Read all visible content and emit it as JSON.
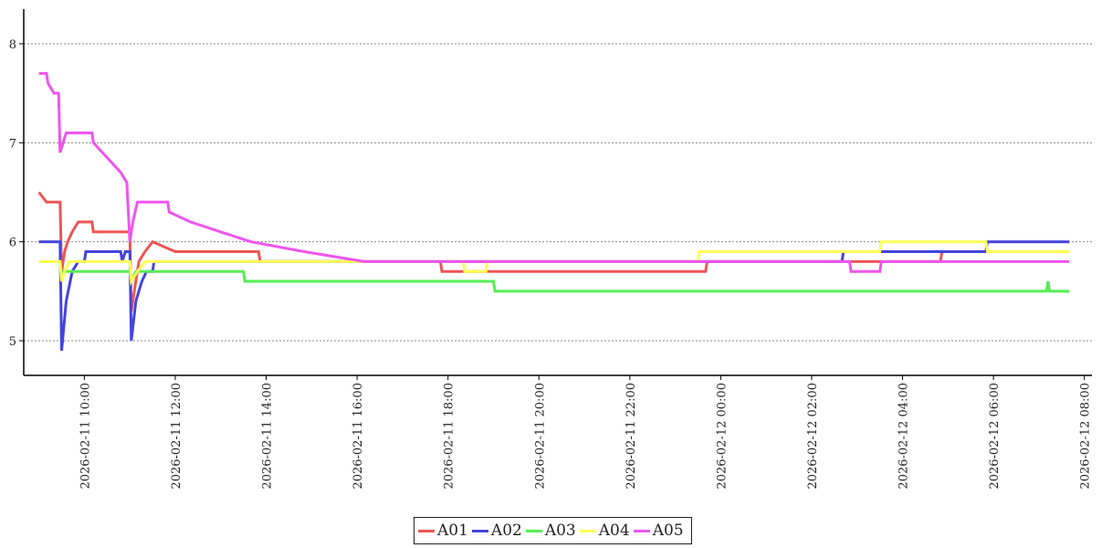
{
  "chart_data": {
    "type": "line",
    "title": "",
    "xlabel": "",
    "ylabel": "",
    "ylim": [
      4.65,
      8.35
    ],
    "xlim": [
      "2026-02-11 08:40",
      "2026-02-12 08:10"
    ],
    "y_ticks": [
      5,
      6,
      7,
      8
    ],
    "x_ticks": [
      "2026-02-11 10:00",
      "2026-02-11 12:00",
      "2026-02-11 14:00",
      "2026-02-11 16:00",
      "2026-02-11 18:00",
      "2026-02-11 20:00",
      "2026-02-11 22:00",
      "2026-02-12 00:00",
      "2026-02-12 02:00",
      "2026-02-12 04:00",
      "2026-02-12 06:00",
      "2026-02-12 08:00"
    ],
    "grid": "horizontal dotted",
    "legend_position": "bottom-center",
    "series": [
      {
        "name": "A01",
        "color": "#ee5555",
        "points": [
          [
            "2026-02-11 09:00",
            6.5
          ],
          [
            "2026-02-11 09:10",
            6.4
          ],
          [
            "2026-02-11 09:28",
            6.4
          ],
          [
            "2026-02-11 09:30",
            5.7
          ],
          [
            "2026-02-11 09:34",
            5.9
          ],
          [
            "2026-02-11 09:38",
            6.0
          ],
          [
            "2026-02-11 09:44",
            6.1
          ],
          [
            "2026-02-11 09:52",
            6.2
          ],
          [
            "2026-02-11 10:10",
            6.2
          ],
          [
            "2026-02-11 10:12",
            6.1
          ],
          [
            "2026-02-11 11:00",
            6.1
          ],
          [
            "2026-02-11 11:02",
            5.3
          ],
          [
            "2026-02-11 11:06",
            5.5
          ],
          [
            "2026-02-11 11:12",
            5.8
          ],
          [
            "2026-02-11 11:20",
            5.9
          ],
          [
            "2026-02-11 11:30",
            6.0
          ],
          [
            "2026-02-11 12:00",
            5.9
          ],
          [
            "2026-02-11 13:50",
            5.9
          ],
          [
            "2026-02-11 13:52",
            5.8
          ],
          [
            "2026-02-11 17:50",
            5.8
          ],
          [
            "2026-02-11 17:52",
            5.7
          ],
          [
            "2026-02-11 23:40",
            5.7
          ],
          [
            "2026-02-11 23:42",
            5.8
          ],
          [
            "2026-02-12 04:50",
            5.8
          ],
          [
            "2026-02-12 04:52",
            5.9
          ],
          [
            "2026-02-12 07:40",
            5.9
          ]
        ]
      },
      {
        "name": "A02",
        "color": "#4444dd",
        "points": [
          [
            "2026-02-11 09:00",
            6.0
          ],
          [
            "2026-02-11 09:28",
            6.0
          ],
          [
            "2026-02-11 09:30",
            4.9
          ],
          [
            "2026-02-11 09:36",
            5.4
          ],
          [
            "2026-02-11 09:44",
            5.7
          ],
          [
            "2026-02-11 09:52",
            5.8
          ],
          [
            "2026-02-11 10:00",
            5.8
          ],
          [
            "2026-02-11 10:02",
            5.9
          ],
          [
            "2026-02-11 10:48",
            5.9
          ],
          [
            "2026-02-11 10:50",
            5.8
          ],
          [
            "2026-02-11 10:54",
            5.9
          ],
          [
            "2026-02-11 11:00",
            5.9
          ],
          [
            "2026-02-11 11:02",
            5.0
          ],
          [
            "2026-02-11 11:08",
            5.4
          ],
          [
            "2026-02-11 11:16",
            5.6
          ],
          [
            "2026-02-11 11:22",
            5.7
          ],
          [
            "2026-02-11 11:30",
            5.7
          ],
          [
            "2026-02-11 11:32",
            5.8
          ],
          [
            "2026-02-12 02:40",
            5.8
          ],
          [
            "2026-02-12 02:42",
            5.9
          ],
          [
            "2026-02-12 05:50",
            5.9
          ],
          [
            "2026-02-12 05:52",
            6.0
          ],
          [
            "2026-02-12 07:40",
            6.0
          ]
        ]
      },
      {
        "name": "A03",
        "color": "#55ee55",
        "points": [
          [
            "2026-02-11 09:00",
            5.8
          ],
          [
            "2026-02-11 09:28",
            5.8
          ],
          [
            "2026-02-11 09:30",
            5.6
          ],
          [
            "2026-02-11 09:32",
            5.7
          ],
          [
            "2026-02-11 11:00",
            5.7
          ],
          [
            "2026-02-11 11:02",
            5.6
          ],
          [
            "2026-02-11 11:08",
            5.7
          ],
          [
            "2026-02-11 13:30",
            5.7
          ],
          [
            "2026-02-11 13:32",
            5.6
          ],
          [
            "2026-02-11 19:00",
            5.6
          ],
          [
            "2026-02-11 19:02",
            5.5
          ],
          [
            "2026-02-12 07:10",
            5.5
          ],
          [
            "2026-02-12 07:12",
            5.6
          ],
          [
            "2026-02-12 07:14",
            5.5
          ],
          [
            "2026-02-12 07:40",
            5.5
          ]
        ]
      },
      {
        "name": "A04",
        "color": "#ffff55",
        "points": [
          [
            "2026-02-11 09:00",
            5.8
          ],
          [
            "2026-02-11 09:28",
            5.8
          ],
          [
            "2026-02-11 09:30",
            5.6
          ],
          [
            "2026-02-11 09:34",
            5.7
          ],
          [
            "2026-02-11 09:40",
            5.8
          ],
          [
            "2026-02-11 11:00",
            5.8
          ],
          [
            "2026-02-11 11:02",
            5.6
          ],
          [
            "2026-02-11 11:10",
            5.7
          ],
          [
            "2026-02-11 11:20",
            5.8
          ],
          [
            "2026-02-11 18:20",
            5.8
          ],
          [
            "2026-02-11 18:22",
            5.7
          ],
          [
            "2026-02-11 18:50",
            5.7
          ],
          [
            "2026-02-11 18:52",
            5.8
          ],
          [
            "2026-02-11 23:30",
            5.8
          ],
          [
            "2026-02-11 23:32",
            5.9
          ],
          [
            "2026-02-12 03:30",
            5.9
          ],
          [
            "2026-02-12 03:32",
            6.0
          ],
          [
            "2026-02-12 05:50",
            6.0
          ],
          [
            "2026-02-12 05:52",
            5.9
          ],
          [
            "2026-02-12 07:40",
            5.9
          ]
        ]
      },
      {
        "name": "A05",
        "color": "#ee55ee",
        "points": [
          [
            "2026-02-11 09:00",
            7.7
          ],
          [
            "2026-02-11 09:10",
            7.7
          ],
          [
            "2026-02-11 09:12",
            7.6
          ],
          [
            "2026-02-11 09:20",
            7.5
          ],
          [
            "2026-02-11 09:26",
            7.5
          ],
          [
            "2026-02-11 09:28",
            6.9
          ],
          [
            "2026-02-11 09:32",
            7.0
          ],
          [
            "2026-02-11 09:36",
            7.1
          ],
          [
            "2026-02-11 10:10",
            7.1
          ],
          [
            "2026-02-11 10:12",
            7.0
          ],
          [
            "2026-02-11 10:24",
            6.9
          ],
          [
            "2026-02-11 10:36",
            6.8
          ],
          [
            "2026-02-11 10:48",
            6.7
          ],
          [
            "2026-02-11 10:56",
            6.6
          ],
          [
            "2026-02-11 11:00",
            6.0
          ],
          [
            "2026-02-11 11:04",
            6.2
          ],
          [
            "2026-02-11 11:10",
            6.4
          ],
          [
            "2026-02-11 11:50",
            6.4
          ],
          [
            "2026-02-11 11:52",
            6.3
          ],
          [
            "2026-02-11 12:20",
            6.2
          ],
          [
            "2026-02-11 13:00",
            6.1
          ],
          [
            "2026-02-11 13:40",
            6.0
          ],
          [
            "2026-02-11 14:50",
            5.9
          ],
          [
            "2026-02-11 16:10",
            5.8
          ],
          [
            "2026-02-12 02:50",
            5.8
          ],
          [
            "2026-02-12 02:52",
            5.7
          ],
          [
            "2026-02-12 03:30",
            5.7
          ],
          [
            "2026-02-12 03:32",
            5.8
          ],
          [
            "2026-02-12 07:40",
            5.8
          ]
        ]
      }
    ]
  }
}
